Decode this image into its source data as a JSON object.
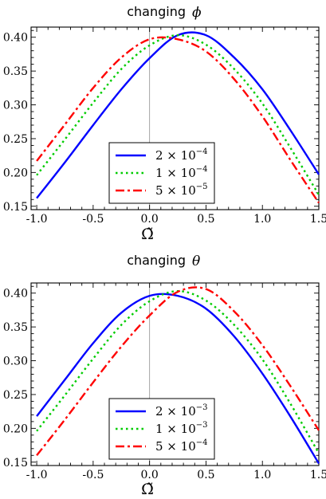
{
  "chart_data": [
    {
      "type": "line",
      "title": "changing",
      "title_symbol": "ϕ",
      "xlabel": "Ω̃",
      "xlim": [
        -1.05,
        1.5
      ],
      "ylim": [
        0.145,
        0.415
      ],
      "x_ticks": [
        -1.0,
        -0.5,
        0.0,
        0.5,
        1.0,
        1.5
      ],
      "x_tick_labels": [
        "-1.0",
        "-0.5",
        "0.0",
        "0.5",
        "1.0",
        "1.5"
      ],
      "y_ticks": [
        0.15,
        0.2,
        0.25,
        0.3,
        0.35,
        0.4
      ],
      "y_tick_labels": [
        "0.15",
        "0.20",
        "0.25",
        "0.30",
        "0.35",
        "0.40"
      ],
      "vertical_reference_line_x": 0.0,
      "legend_position": "bottom-center",
      "x": [
        -1.0,
        -0.75,
        -0.5,
        -0.25,
        0.0,
        0.25,
        0.5,
        0.75,
        1.0,
        1.25,
        1.5
      ],
      "series": [
        {
          "name_base": "2 × 10",
          "name_exp": "−4",
          "color": "#0000ff",
          "style": "solid",
          "values": [
            0.162,
            0.215,
            0.27,
            0.323,
            0.369,
            0.403,
            0.403,
            0.37,
            0.323,
            0.262,
            0.197
          ]
        },
        {
          "name_base": "1 × 10",
          "name_exp": "−4",
          "color": "#00cc00",
          "style": "dotted",
          "values": [
            0.196,
            0.249,
            0.303,
            0.353,
            0.388,
            0.403,
            0.389,
            0.353,
            0.302,
            0.236,
            0.167
          ]
        },
        {
          "name_base": "5 × 10",
          "name_exp": "−5",
          "color": "#ff0000",
          "style": "dashdot",
          "values": [
            0.217,
            0.271,
            0.325,
            0.37,
            0.397,
            0.397,
            0.379,
            0.338,
            0.283,
            0.218,
            0.155
          ]
        }
      ]
    },
    {
      "type": "line",
      "title": "changing",
      "title_symbol": "θ",
      "xlabel": "Ω̃",
      "xlim": [
        -1.05,
        1.5
      ],
      "ylim": [
        0.145,
        0.415
      ],
      "x_ticks": [
        -1.0,
        -0.5,
        0.0,
        0.5,
        1.0,
        1.5
      ],
      "x_tick_labels": [
        "-1.0",
        "-0.5",
        "0.0",
        "0.5",
        "1.0",
        "1.5"
      ],
      "y_ticks": [
        0.15,
        0.2,
        0.25,
        0.3,
        0.35,
        0.4
      ],
      "y_tick_labels": [
        "0.15",
        "0.20",
        "0.25",
        "0.30",
        "0.35",
        "0.40"
      ],
      "vertical_reference_line_x": 0.0,
      "legend_position": "bottom-center",
      "x": [
        -1.0,
        -0.75,
        -0.5,
        -0.25,
        0.0,
        0.25,
        0.5,
        0.75,
        1.0,
        1.25,
        1.5
      ],
      "series": [
        {
          "name_base": "2 × 10",
          "name_exp": "−3",
          "color": "#0000ff",
          "style": "solid",
          "values": [
            0.218,
            0.272,
            0.326,
            0.371,
            0.396,
            0.396,
            0.377,
            0.336,
            0.281,
            0.217,
            0.148
          ]
        },
        {
          "name_base": "1 × 10",
          "name_exp": "−3",
          "color": "#00cc00",
          "style": "dotted",
          "values": [
            0.196,
            0.249,
            0.303,
            0.353,
            0.388,
            0.403,
            0.389,
            0.353,
            0.302,
            0.236,
            0.163
          ]
        },
        {
          "name_base": "5 × 10",
          "name_exp": "−4",
          "color": "#ff0000",
          "style": "dashdot",
          "values": [
            0.16,
            0.213,
            0.268,
            0.321,
            0.367,
            0.402,
            0.406,
            0.373,
            0.323,
            0.262,
            0.197
          ]
        }
      ]
    }
  ]
}
